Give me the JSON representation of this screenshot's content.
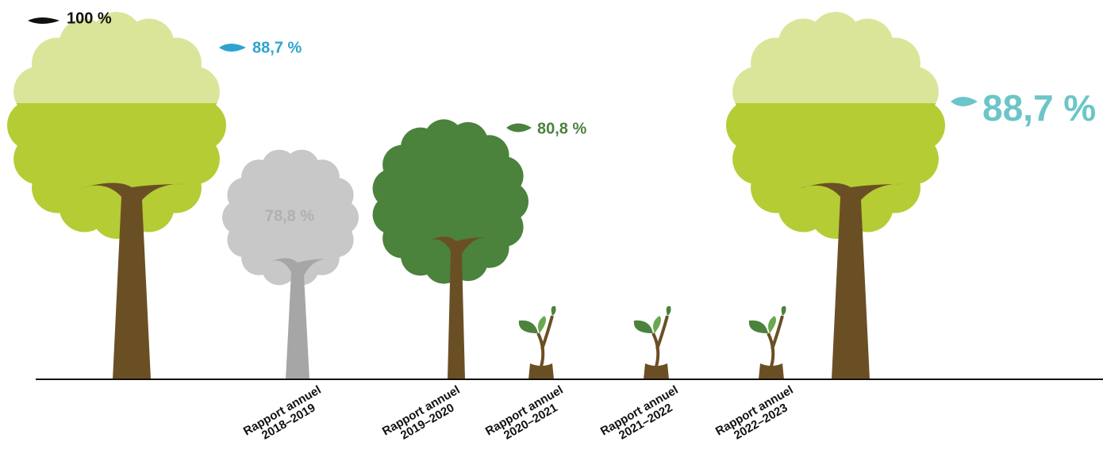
{
  "markers": [
    {
      "label": "100 %"
    },
    {
      "label": "88,7 %"
    },
    {
      "label": "78,8 %"
    },
    {
      "label": "80,8 %"
    },
    {
      "label": "88,7 %"
    }
  ],
  "labels": [
    {
      "line1": "Rapport annuel",
      "line2": "2018–2019"
    },
    {
      "line1": "Rapport annuel",
      "line2": "2019–2020"
    },
    {
      "line1": "Rapport annuel",
      "line2": "2020–2021"
    },
    {
      "line1": "Rapport annuel",
      "line2": "2021–2022"
    },
    {
      "line1": "Rapport annuel",
      "line2": "2022–2023"
    }
  ]
}
